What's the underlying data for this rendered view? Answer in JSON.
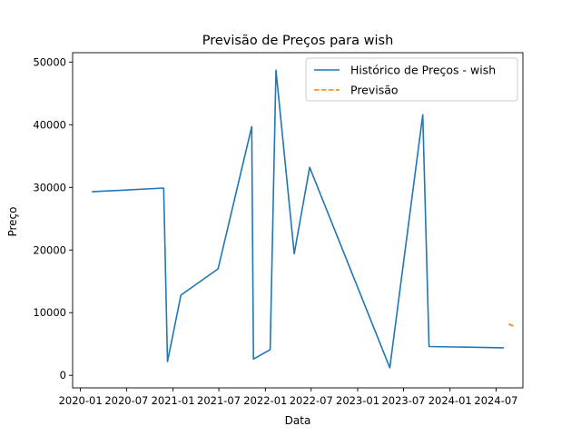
{
  "chart_data": {
    "type": "line",
    "title": "Previsão de Preços para wish",
    "xlabel": "Data",
    "ylabel": "Preço",
    "xlim": [
      "2019-12-01",
      "2024-10-15"
    ],
    "ylim": [
      -2000,
      51500
    ],
    "x_ticks": [
      "2020-01",
      "2020-07",
      "2021-01",
      "2021-07",
      "2022-01",
      "2022-07",
      "2023-01",
      "2023-07",
      "2024-01",
      "2024-07"
    ],
    "y_ticks": [
      0,
      10000,
      20000,
      30000,
      40000,
      50000
    ],
    "legend_position": "top-right",
    "grid": false,
    "series": [
      {
        "name": "Histórico de Preços - wish",
        "color": "#1f77b4",
        "style": "solid",
        "points": [
          {
            "x": "2020-02-15",
            "y": 29300
          },
          {
            "x": "2020-11-25",
            "y": 29900
          },
          {
            "x": "2020-12-10",
            "y": 2200
          },
          {
            "x": "2021-02-01",
            "y": 12800
          },
          {
            "x": "2021-06-28",
            "y": 17000
          },
          {
            "x": "2021-11-08",
            "y": 39700
          },
          {
            "x": "2021-11-15",
            "y": 2600
          },
          {
            "x": "2022-01-20",
            "y": 4100
          },
          {
            "x": "2022-02-12",
            "y": 48700
          },
          {
            "x": "2022-04-25",
            "y": 19400
          },
          {
            "x": "2022-06-25",
            "y": 33200
          },
          {
            "x": "2023-05-08",
            "y": 1200
          },
          {
            "x": "2023-09-15",
            "y": 41600
          },
          {
            "x": "2023-10-10",
            "y": 4600
          },
          {
            "x": "2024-08-01",
            "y": 4400
          }
        ]
      },
      {
        "name": "Previsão",
        "color": "#ff7f0e",
        "style": "dashed",
        "points": [
          {
            "x": "2024-08-20",
            "y": 8200
          },
          {
            "x": "2024-09-10",
            "y": 7800
          }
        ]
      }
    ]
  }
}
